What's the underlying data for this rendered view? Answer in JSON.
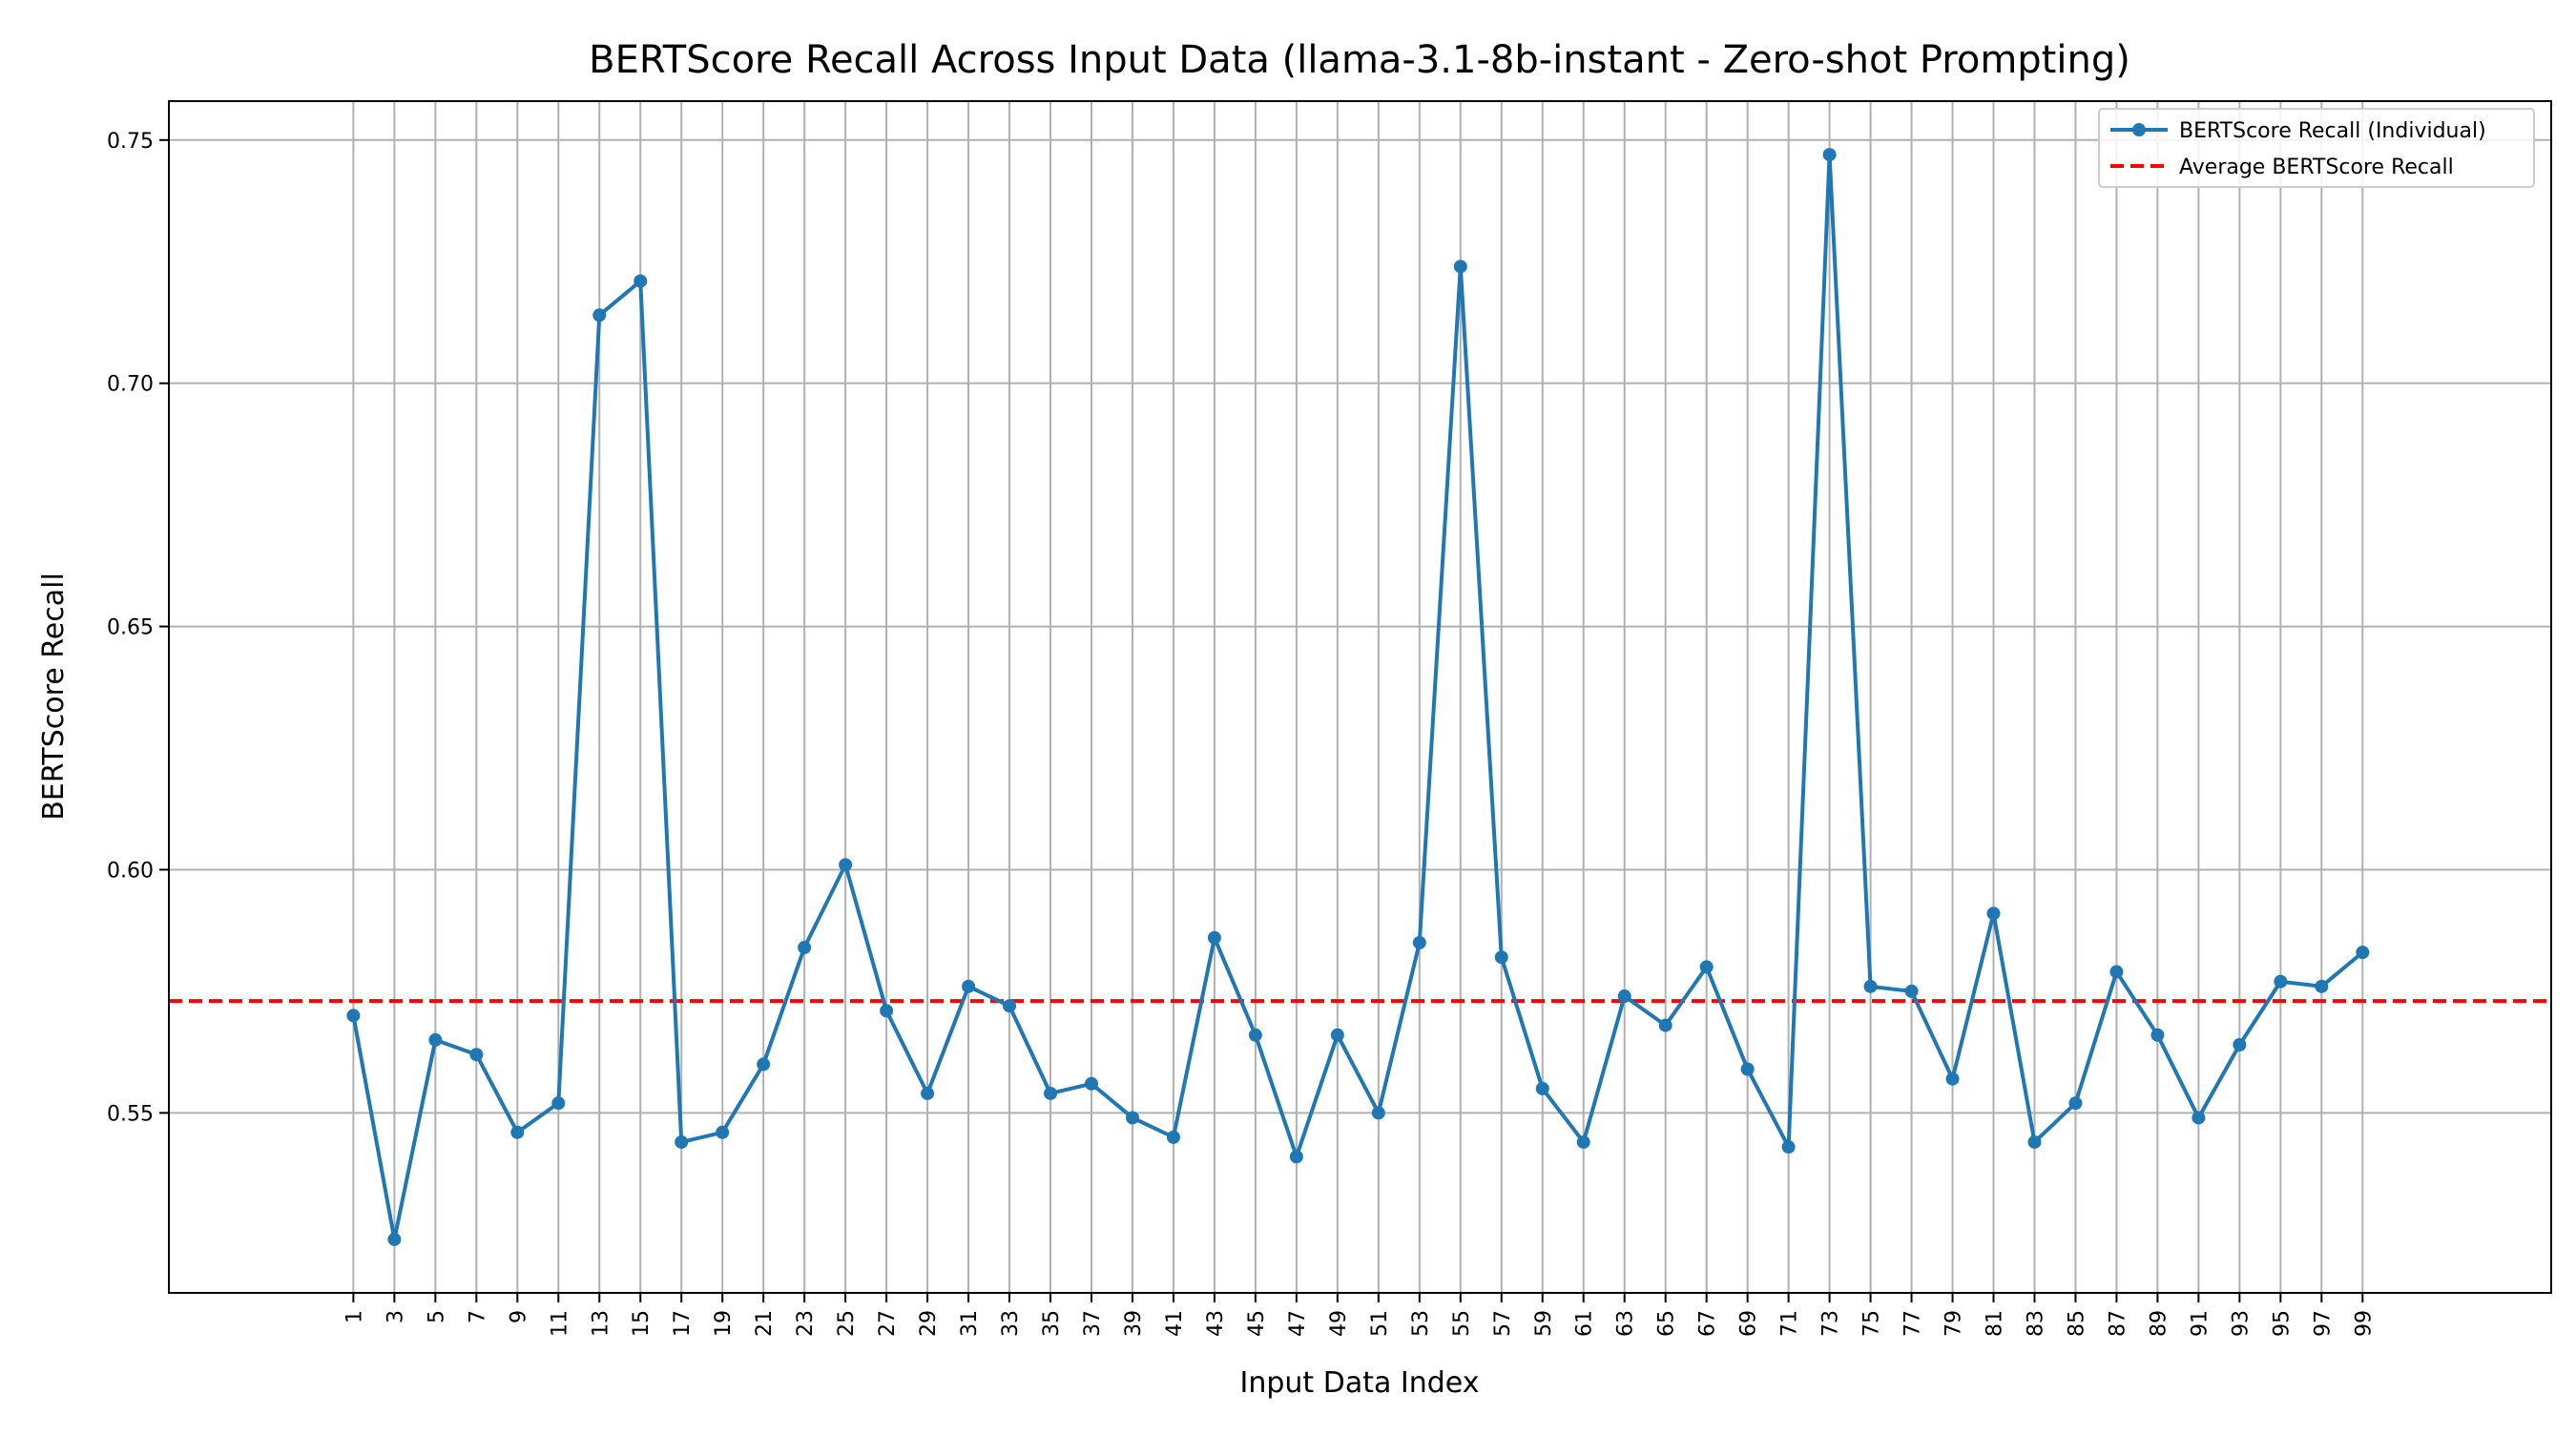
{
  "chart_data": {
    "type": "line",
    "title": "BERTScore Recall Across Input Data (llama-3.1-8b-instant - Zero-shot Prompting)",
    "xlabel": "Input Data Index",
    "ylabel": "BERTScore Recall",
    "x": [
      1,
      3,
      5,
      7,
      9,
      11,
      13,
      15,
      17,
      19,
      21,
      23,
      25,
      27,
      29,
      31,
      33,
      35,
      37,
      39,
      41,
      43,
      45,
      47,
      49,
      51,
      53,
      55,
      57,
      59,
      61,
      63,
      65,
      67,
      69,
      71,
      73,
      75,
      77,
      79,
      81,
      83,
      85,
      87,
      89,
      91,
      93,
      95,
      97,
      99
    ],
    "x_ticks": [
      "1",
      "3",
      "5",
      "7",
      "9",
      "11",
      "13",
      "15",
      "17",
      "19",
      "21",
      "23",
      "25",
      "27",
      "29",
      "31",
      "33",
      "35",
      "37",
      "39",
      "41",
      "43",
      "45",
      "47",
      "49",
      "51",
      "53",
      "55",
      "57",
      "59",
      "61",
      "63",
      "65",
      "67",
      "69",
      "71",
      "73",
      "75",
      "77",
      "79",
      "81",
      "83",
      "85",
      "87",
      "89",
      "91",
      "93",
      "95",
      "97",
      "99"
    ],
    "xlim": [
      -8,
      108.2
    ],
    "ylim": [
      0.513,
      0.758
    ],
    "y_ticks": [
      0.55,
      0.6,
      0.65,
      0.7,
      0.75
    ],
    "y_tick_labels": [
      "0.55",
      "0.60",
      "0.65",
      "0.70",
      "0.75"
    ],
    "grid": true,
    "legend_position": "top-right",
    "series": [
      {
        "name": "BERTScore Recall (Individual)",
        "color": "#1f77b4",
        "style": "solid-marker",
        "values": [
          0.57,
          0.524,
          0.565,
          0.562,
          0.546,
          0.552,
          0.714,
          0.721,
          0.544,
          0.546,
          0.56,
          0.584,
          0.601,
          0.571,
          0.554,
          0.576,
          0.572,
          0.554,
          0.556,
          0.549,
          0.545,
          0.586,
          0.566,
          0.541,
          0.566,
          0.55,
          0.585,
          0.724,
          0.582,
          0.555,
          0.544,
          0.574,
          0.568,
          0.58,
          0.559,
          0.543,
          0.747,
          0.576,
          0.575,
          0.557,
          0.591,
          0.544,
          0.552,
          0.579,
          0.566,
          0.549,
          0.564,
          0.577,
          0.576,
          0.583
        ]
      },
      {
        "name": "Average BERTScore Recall",
        "color": "#ff0000",
        "style": "dashed",
        "value": 0.573
      }
    ]
  }
}
